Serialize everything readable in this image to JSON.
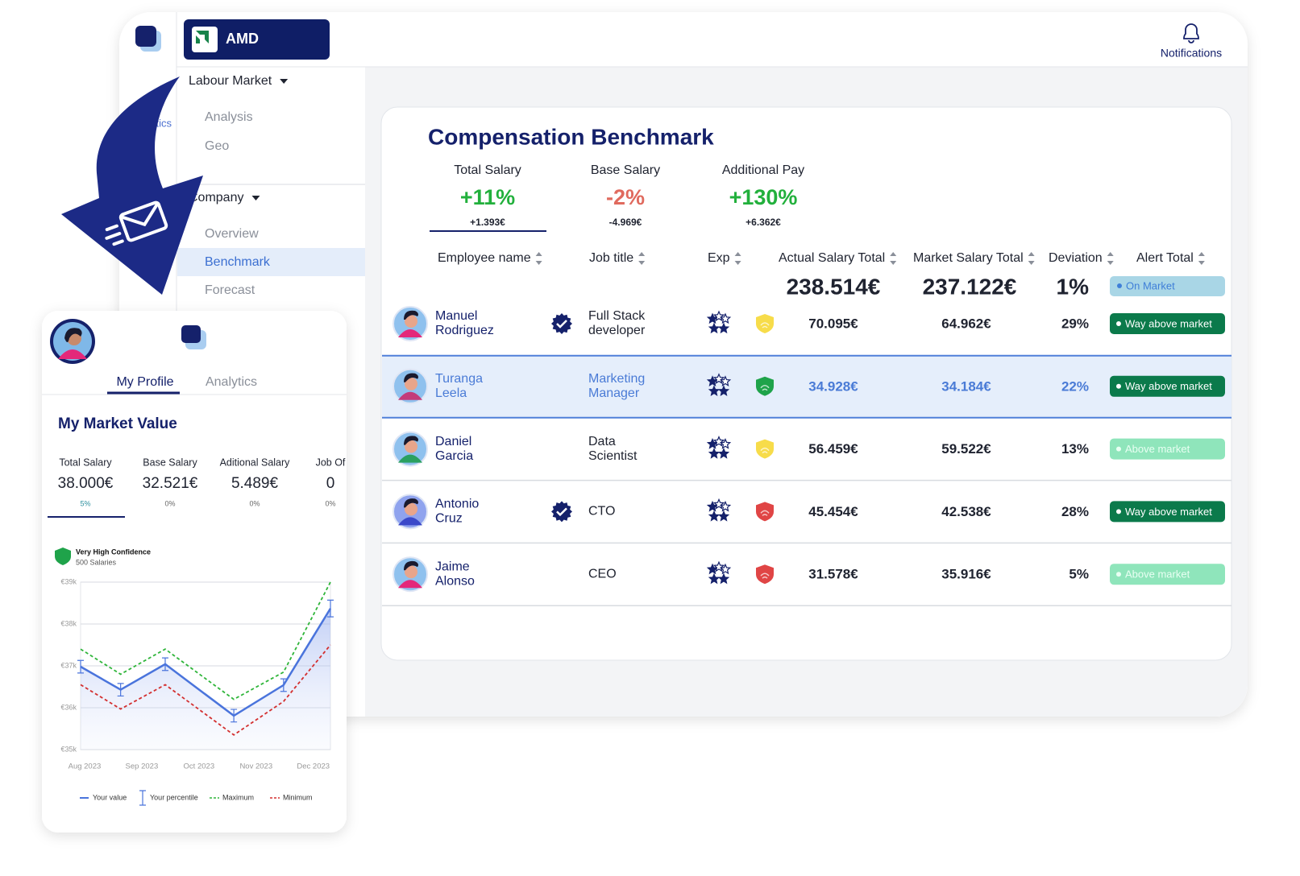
{
  "app": {
    "brand": "AMD",
    "notifications": "Notifications",
    "sidebar": {
      "partial_item": "Analytics",
      "groups": [
        {
          "label": "Labour Market",
          "items": [
            "Analysis",
            "Geo"
          ]
        },
        {
          "label": "Company",
          "items": [
            "Overview",
            "Benchmark",
            "Forecast"
          ]
        }
      ]
    }
  },
  "benchmark": {
    "title": "Compensation Benchmark",
    "summary": [
      {
        "label": "Total Salary",
        "change": "+11%",
        "amount": "+1.393€",
        "color": "#22b03c"
      },
      {
        "label": "Base Salary",
        "change": "-2%",
        "amount": "-4.969€",
        "color": "#e06a5e"
      },
      {
        "label": "Additional Pay",
        "change": "+130%",
        "amount": "+6.362€",
        "color": "#22b03c"
      }
    ],
    "columns": [
      "Employee name",
      "Job title",
      "Exp",
      "Actual Salary Total",
      "Market Salary Total",
      "Deviation",
      "Alert Total"
    ],
    "totals": {
      "actual": "238.514€",
      "market": "237.122€",
      "deviation": "1%",
      "alert": "On Market"
    },
    "rows": [
      {
        "name": [
          "Manuel",
          "Rodriguez"
        ],
        "job": [
          "Full Stack",
          "developer"
        ],
        "verified": true,
        "confidence": "#f7dc4a",
        "actual": "70.095€",
        "market": "64.962€",
        "deviation": "29%",
        "alert": "Way above market",
        "strong": true,
        "highlight": false
      },
      {
        "name": [
          "Turanga",
          "Leela"
        ],
        "job": [
          "Marketing",
          "Manager"
        ],
        "verified": false,
        "confidence": "#1fa34a",
        "actual": "34.928€",
        "market": "34.184€",
        "deviation": "22%",
        "alert": "Way above market",
        "strong": true,
        "highlight": true
      },
      {
        "name": [
          "Daniel",
          "Garcia"
        ],
        "job": [
          "Data",
          "Scientist"
        ],
        "verified": false,
        "confidence": "#f7dc4a",
        "actual": "56.459€",
        "market": "59.522€",
        "deviation": "13%",
        "alert": "Above market",
        "strong": false,
        "highlight": false
      },
      {
        "name": [
          "Antonio",
          "Cruz"
        ],
        "job": [
          "CTO"
        ],
        "verified": true,
        "confidence": "#e04545",
        "actual": "45.454€",
        "market": "42.538€",
        "deviation": "28%",
        "alert": "Way above market",
        "strong": true,
        "highlight": false
      },
      {
        "name": [
          "Jaime",
          "Alonso"
        ],
        "job": [
          "CEO"
        ],
        "verified": false,
        "confidence": "#e04545",
        "actual": "31.578€",
        "market": "35.916€",
        "deviation": "5%",
        "alert": "Above market",
        "strong": false,
        "highlight": false
      }
    ]
  },
  "profile": {
    "tabs": [
      "My Profile",
      "Analytics"
    ],
    "title": "My Market Value",
    "stats": [
      {
        "label": "Total Salary",
        "value": "38.000€",
        "change": "5%"
      },
      {
        "label": "Base Salary",
        "value": "32.521€",
        "change": "0%"
      },
      {
        "label": "Aditional Salary",
        "value": "5.489€",
        "change": "0%"
      },
      {
        "label": "Job Of",
        "value": "0",
        "change": "0%"
      }
    ],
    "confidence": {
      "label": "Very High Confidence",
      "count": "500 Salaries"
    }
  },
  "chart_data": {
    "type": "line",
    "x": [
      -0.07,
      0.63,
      1.41,
      2.61,
      3.48,
      4.3
    ],
    "xlim": [
      -0.07,
      4.3
    ],
    "xticks": [
      {
        "value": 0,
        "label": "Aug 2023"
      },
      {
        "value": 1,
        "label": "Sep 2023"
      },
      {
        "value": 2,
        "label": "Oct 2023"
      },
      {
        "value": 3,
        "label": "Nov  2023"
      },
      {
        "value": 4,
        "label": "Dec 2023"
      }
    ],
    "ylim": [
      35,
      39
    ],
    "yticks": [
      {
        "value": 35,
        "label": "€35k"
      },
      {
        "value": 36,
        "label": "€36k"
      },
      {
        "value": 37,
        "label": "€37k"
      },
      {
        "value": 38,
        "label": "€38k"
      },
      {
        "value": 39,
        "label": "€39k"
      }
    ],
    "grid": true,
    "error_name": "Your percentile",
    "series": [
      {
        "name": "Your value",
        "color": "#4a74dc",
        "values": [
          36.98,
          36.43,
          37.04,
          35.81,
          36.54,
          38.37
        ],
        "errors": [
          0.15,
          0.15,
          0.15,
          0.15,
          0.15,
          0.2
        ]
      },
      {
        "name": "Maximum",
        "color": "#2fb53a",
        "dashed": true,
        "values": [
          37.4,
          36.8,
          37.4,
          36.2,
          36.85,
          39.0
        ]
      },
      {
        "name": "Minimum",
        "color": "#d32f2f",
        "dashed": true,
        "values": [
          36.55,
          35.97,
          36.55,
          35.35,
          36.15,
          37.5
        ]
      }
    ]
  }
}
